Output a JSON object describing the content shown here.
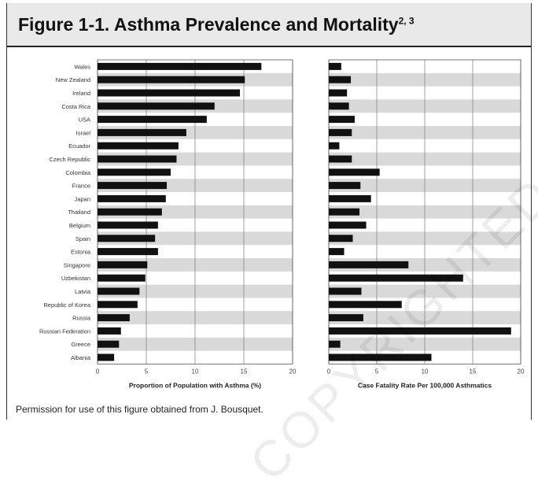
{
  "figure": {
    "title": "Figure 1-1. Asthma Prevalence and Mortality",
    "title_refs": "2, 3",
    "caption": "Permission for use of this figure obtained from J. Bousquet.",
    "watermark": "COPYRIGHTED MATERIAL"
  },
  "chart_data": [
    {
      "type": "bar",
      "orientation": "horizontal",
      "categories": [
        "Wales",
        "New Zealand",
        "Ireland",
        "Costa Rica",
        "USA",
        "Israel",
        "Ecuador",
        "Czech Republic",
        "Colombia",
        "France",
        "Japan",
        "Thailand",
        "Belgium",
        "Spain",
        "Estonia",
        "Singapore",
        "Uzbekistan",
        "Latvia",
        "Republic of Korea",
        "Russia",
        "Russian Federation",
        "Greece",
        "Albania"
      ],
      "values": [
        16.8,
        15.1,
        14.6,
        12.0,
        11.2,
        9.1,
        8.3,
        8.1,
        7.5,
        7.1,
        7.0,
        6.6,
        6.2,
        5.9,
        6.2,
        5.1,
        4.9,
        4.3,
        4.1,
        3.3,
        2.4,
        2.2,
        1.7
      ],
      "xlabel": "Proportion of Population with Asthma (%)",
      "xticks": [
        0,
        5,
        10,
        15,
        20
      ],
      "xlim": [
        0,
        20
      ],
      "bar_color": "#111111",
      "band_color": "#d9d9d9"
    },
    {
      "type": "bar",
      "orientation": "horizontal",
      "categories": [
        "Wales",
        "New Zealand",
        "Ireland",
        "Costa Rica",
        "USA",
        "Israel",
        "Ecuador",
        "Czech Republic",
        "Colombia",
        "France",
        "Japan",
        "Thailand",
        "Belgium",
        "Spain",
        "Estonia",
        "Singapore",
        "Uzbekistan",
        "Latvia",
        "Republic of Korea",
        "Russia",
        "Russian Federation",
        "Greece",
        "Albania"
      ],
      "values": [
        1.3,
        2.3,
        1.9,
        2.1,
        2.7,
        2.4,
        1.1,
        2.4,
        5.3,
        3.3,
        4.4,
        3.2,
        3.9,
        2.5,
        1.6,
        8.3,
        14.0,
        3.4,
        7.6,
        3.6,
        19.0,
        1.2,
        10.7
      ],
      "xlabel": "Case Fatality Rate Per 100,000 Asthmatics",
      "xticks": [
        0,
        5,
        10,
        15,
        20
      ],
      "xlim": [
        0,
        20
      ],
      "bar_color": "#111111",
      "band_color": "#d9d9d9"
    }
  ]
}
